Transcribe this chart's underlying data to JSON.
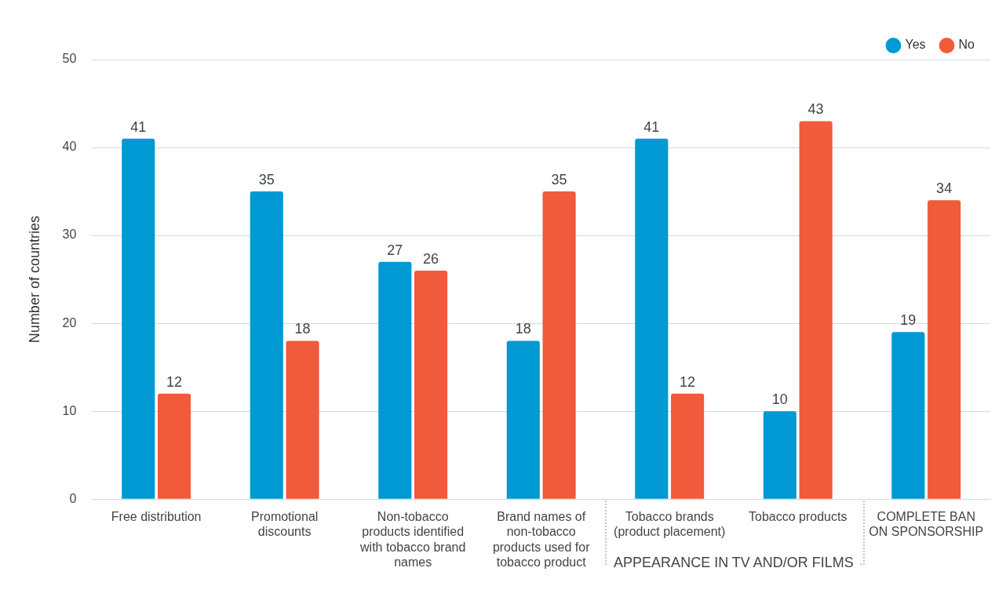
{
  "chart_data": {
    "type": "bar",
    "ylabel": "Number of countries",
    "categories": [
      "Free distribution",
      "Promotional discounts",
      "Non-tobacco products identified with tobacco brand names",
      "Brand names of non-tobacco products used for tobacco product",
      "Tobacco brands (product placement)",
      "Tobacco products",
      "COMPLETE BAN ON SPONSORSHIP"
    ],
    "series": [
      {
        "name": "Yes",
        "color": "#0099d4",
        "values": [
          41,
          35,
          27,
          18,
          41,
          10,
          19
        ]
      },
      {
        "name": "No",
        "color": "#f15a3a",
        "values": [
          12,
          18,
          26,
          35,
          12,
          43,
          34
        ]
      }
    ],
    "ylim": [
      0,
      50
    ],
    "yticks": [
      0,
      10,
      20,
      30,
      40,
      50
    ],
    "grid": "y",
    "legend": "top right",
    "data_labels": true,
    "annotations": [
      "APPEARANCE IN TV AND/OR FILMS"
    ]
  }
}
